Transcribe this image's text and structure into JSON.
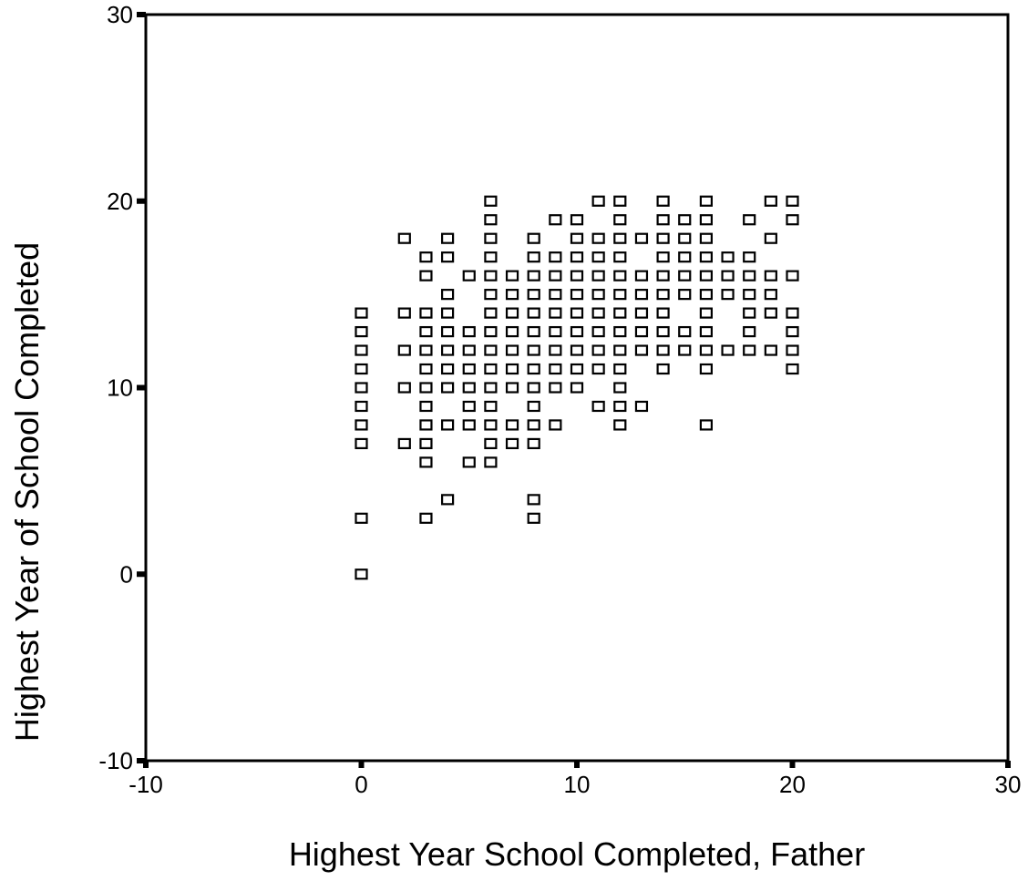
{
  "chart_data": {
    "type": "scatter",
    "xlabel": "Highest Year School Completed, Father",
    "ylabel": "Highest Year of School Completed",
    "xlim": [
      -10,
      30
    ],
    "ylim": [
      -10,
      30
    ],
    "xticks": [
      -10,
      0,
      10,
      20,
      30
    ],
    "yticks": [
      -10,
      0,
      10,
      20,
      30
    ],
    "grid": false,
    "marker": "hollow-square",
    "marker_color": "#000000",
    "points": [
      [
        0,
        0
      ],
      [
        0,
        3
      ],
      [
        0,
        7
      ],
      [
        0,
        8
      ],
      [
        0,
        9
      ],
      [
        0,
        10
      ],
      [
        0,
        11
      ],
      [
        0,
        12
      ],
      [
        0,
        13
      ],
      [
        0,
        14
      ],
      [
        2,
        7
      ],
      [
        2,
        10
      ],
      [
        2,
        12
      ],
      [
        2,
        14
      ],
      [
        2,
        18
      ],
      [
        3,
        3
      ],
      [
        3,
        6
      ],
      [
        3,
        7
      ],
      [
        3,
        8
      ],
      [
        3,
        9
      ],
      [
        3,
        10
      ],
      [
        3,
        11
      ],
      [
        3,
        12
      ],
      [
        3,
        13
      ],
      [
        3,
        14
      ],
      [
        3,
        16
      ],
      [
        3,
        17
      ],
      [
        4,
        4
      ],
      [
        4,
        8
      ],
      [
        4,
        10
      ],
      [
        4,
        11
      ],
      [
        4,
        12
      ],
      [
        4,
        13
      ],
      [
        4,
        14
      ],
      [
        4,
        15
      ],
      [
        4,
        17
      ],
      [
        4,
        18
      ],
      [
        5,
        6
      ],
      [
        5,
        8
      ],
      [
        5,
        9
      ],
      [
        5,
        10
      ],
      [
        5,
        11
      ],
      [
        5,
        12
      ],
      [
        5,
        13
      ],
      [
        5,
        16
      ],
      [
        6,
        6
      ],
      [
        6,
        7
      ],
      [
        6,
        8
      ],
      [
        6,
        9
      ],
      [
        6,
        10
      ],
      [
        6,
        11
      ],
      [
        6,
        12
      ],
      [
        6,
        13
      ],
      [
        6,
        14
      ],
      [
        6,
        15
      ],
      [
        6,
        16
      ],
      [
        6,
        17
      ],
      [
        6,
        18
      ],
      [
        6,
        19
      ],
      [
        6,
        20
      ],
      [
        7,
        7
      ],
      [
        7,
        8
      ],
      [
        7,
        10
      ],
      [
        7,
        11
      ],
      [
        7,
        12
      ],
      [
        7,
        13
      ],
      [
        7,
        14
      ],
      [
        7,
        15
      ],
      [
        7,
        16
      ],
      [
        8,
        3
      ],
      [
        8,
        4
      ],
      [
        8,
        7
      ],
      [
        8,
        8
      ],
      [
        8,
        9
      ],
      [
        8,
        10
      ],
      [
        8,
        11
      ],
      [
        8,
        12
      ],
      [
        8,
        13
      ],
      [
        8,
        14
      ],
      [
        8,
        15
      ],
      [
        8,
        16
      ],
      [
        8,
        17
      ],
      [
        8,
        18
      ],
      [
        9,
        8
      ],
      [
        9,
        10
      ],
      [
        9,
        11
      ],
      [
        9,
        12
      ],
      [
        9,
        13
      ],
      [
        9,
        14
      ],
      [
        9,
        15
      ],
      [
        9,
        16
      ],
      [
        9,
        17
      ],
      [
        9,
        19
      ],
      [
        10,
        10
      ],
      [
        10,
        11
      ],
      [
        10,
        12
      ],
      [
        10,
        13
      ],
      [
        10,
        14
      ],
      [
        10,
        15
      ],
      [
        10,
        16
      ],
      [
        10,
        17
      ],
      [
        10,
        18
      ],
      [
        10,
        19
      ],
      [
        11,
        9
      ],
      [
        11,
        11
      ],
      [
        11,
        12
      ],
      [
        11,
        13
      ],
      [
        11,
        14
      ],
      [
        11,
        15
      ],
      [
        11,
        16
      ],
      [
        11,
        17
      ],
      [
        11,
        18
      ],
      [
        11,
        20
      ],
      [
        12,
        8
      ],
      [
        12,
        9
      ],
      [
        12,
        10
      ],
      [
        12,
        11
      ],
      [
        12,
        12
      ],
      [
        12,
        13
      ],
      [
        12,
        14
      ],
      [
        12,
        15
      ],
      [
        12,
        16
      ],
      [
        12,
        17
      ],
      [
        12,
        18
      ],
      [
        12,
        19
      ],
      [
        12,
        20
      ],
      [
        13,
        9
      ],
      [
        13,
        12
      ],
      [
        13,
        13
      ],
      [
        13,
        14
      ],
      [
        13,
        15
      ],
      [
        13,
        16
      ],
      [
        13,
        18
      ],
      [
        14,
        11
      ],
      [
        14,
        12
      ],
      [
        14,
        13
      ],
      [
        14,
        14
      ],
      [
        14,
        15
      ],
      [
        14,
        16
      ],
      [
        14,
        17
      ],
      [
        14,
        18
      ],
      [
        14,
        19
      ],
      [
        14,
        20
      ],
      [
        15,
        12
      ],
      [
        15,
        13
      ],
      [
        15,
        15
      ],
      [
        15,
        16
      ],
      [
        15,
        17
      ],
      [
        15,
        18
      ],
      [
        15,
        19
      ],
      [
        16,
        8
      ],
      [
        16,
        11
      ],
      [
        16,
        12
      ],
      [
        16,
        13
      ],
      [
        16,
        14
      ],
      [
        16,
        15
      ],
      [
        16,
        16
      ],
      [
        16,
        17
      ],
      [
        16,
        18
      ],
      [
        16,
        19
      ],
      [
        16,
        20
      ],
      [
        17,
        12
      ],
      [
        17,
        15
      ],
      [
        17,
        16
      ],
      [
        17,
        17
      ],
      [
        18,
        12
      ],
      [
        18,
        13
      ],
      [
        18,
        14
      ],
      [
        18,
        15
      ],
      [
        18,
        16
      ],
      [
        18,
        17
      ],
      [
        18,
        19
      ],
      [
        19,
        12
      ],
      [
        19,
        14
      ],
      [
        19,
        15
      ],
      [
        19,
        16
      ],
      [
        19,
        18
      ],
      [
        19,
        20
      ],
      [
        20,
        11
      ],
      [
        20,
        12
      ],
      [
        20,
        13
      ],
      [
        20,
        14
      ],
      [
        20,
        16
      ],
      [
        20,
        19
      ],
      [
        20,
        20
      ]
    ]
  }
}
